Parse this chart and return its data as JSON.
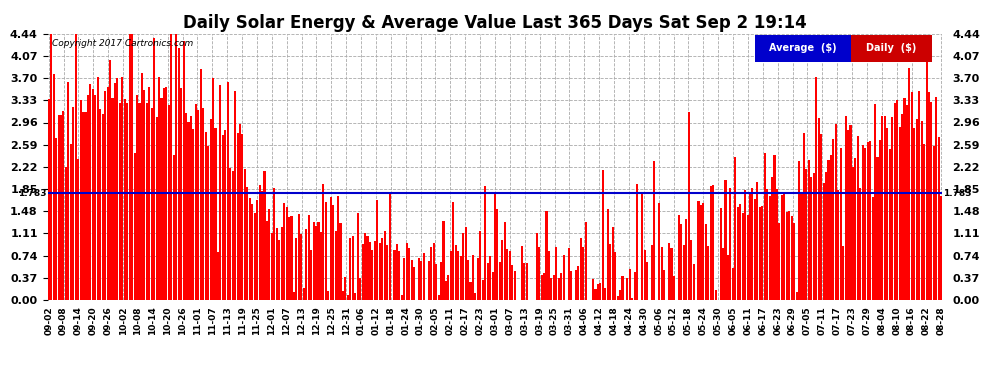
{
  "title": "Daily Solar Energy & Average Value Last 365 Days Sat Sep 2 19:14",
  "copyright": "Copyright 2017 Cartronics.com",
  "average_value": 1.783,
  "average_label": "1.783",
  "ymin": 0.0,
  "ymax": 4.44,
  "yticks": [
    0.0,
    0.37,
    0.74,
    1.11,
    1.48,
    1.85,
    2.22,
    2.59,
    2.96,
    3.33,
    3.7,
    4.07,
    4.44
  ],
  "bar_color": "#FF0000",
  "average_line_color": "#0000CC",
  "background_color": "#FFFFFF",
  "grid_color": "#AAAAAA",
  "legend_avg_bg": "#0000CC",
  "legend_daily_bg": "#CC0000",
  "legend_text_color": "#FFFFFF",
  "title_fontsize": 12,
  "tick_fontsize": 8,
  "xlabel_fontsize": 6.5,
  "xtick_labels": [
    "09-02",
    "09-08",
    "09-14",
    "09-20",
    "09-26",
    "10-02",
    "10-08",
    "10-14",
    "10-20",
    "10-26",
    "11-01",
    "11-07",
    "11-13",
    "11-19",
    "11-25",
    "12-01",
    "12-07",
    "12-13",
    "12-19",
    "12-25",
    "12-31",
    "01-06",
    "01-12",
    "01-18",
    "01-24",
    "01-30",
    "02-05",
    "02-11",
    "02-17",
    "02-23",
    "03-01",
    "03-07",
    "03-13",
    "03-19",
    "03-25",
    "03-31",
    "04-06",
    "04-12",
    "04-18",
    "04-24",
    "04-30",
    "05-06",
    "05-12",
    "05-18",
    "05-24",
    "05-30",
    "06-05",
    "06-11",
    "06-17",
    "06-23",
    "06-29",
    "07-05",
    "07-11",
    "07-17",
    "07-23",
    "07-29",
    "08-04",
    "08-10",
    "08-16",
    "08-22",
    "08-28"
  ],
  "num_bars": 365,
  "seed": 42
}
